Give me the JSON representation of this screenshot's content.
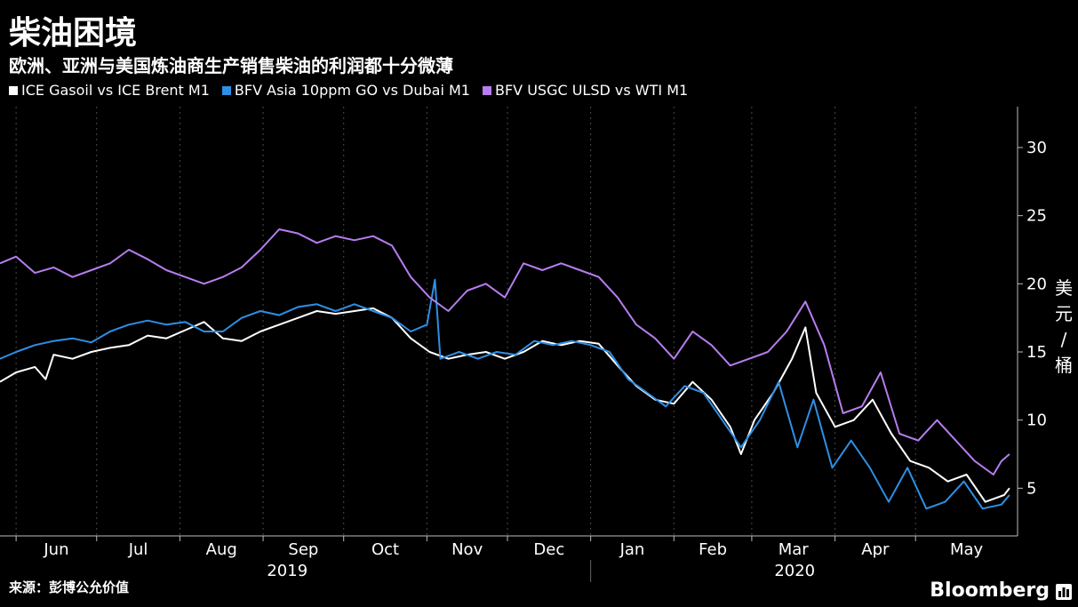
{
  "title": "柴油困境",
  "subtitle": "欧洲、亚洲与美国炼油商生产销售柴油的利润都十分微薄",
  "source": "来源：彭博公允价值",
  "brand": "Bloomberg",
  "unit_chars": [
    "美",
    "元",
    "/",
    "桶"
  ],
  "chart_data": {
    "type": "line",
    "title": "柴油困境",
    "subtitle": "欧洲、亚洲与美国炼油商生产销售柴油的利润都十分微薄",
    "ylabel": "美元/桶",
    "ylim": [
      1.5,
      33
    ],
    "yticks": [
      5,
      10,
      15,
      20,
      25,
      30
    ],
    "xlim": [
      "2019-05-26",
      "2020-06-08"
    ],
    "month_ticks": [
      {
        "label": "Jun",
        "date": "2019-06-01"
      },
      {
        "label": "Jul",
        "date": "2019-07-01"
      },
      {
        "label": "Aug",
        "date": "2019-08-01"
      },
      {
        "label": "Sep",
        "date": "2019-09-01"
      },
      {
        "label": "Oct",
        "date": "2019-10-01"
      },
      {
        "label": "Nov",
        "date": "2019-11-01"
      },
      {
        "label": "Dec",
        "date": "2019-12-01"
      },
      {
        "label": "Jan",
        "date": "2020-01-01"
      },
      {
        "label": "Feb",
        "date": "2020-02-01"
      },
      {
        "label": "Mar",
        "date": "2020-03-01"
      },
      {
        "label": "Apr",
        "date": "2020-04-01"
      },
      {
        "label": "May",
        "date": "2020-05-01"
      }
    ],
    "year_labels": [
      {
        "label": "2019",
        "date": "2019-09-10"
      },
      {
        "label": "2020",
        "date": "2020-03-17"
      }
    ],
    "year_divider": "2020-01-01",
    "axis_position": "right",
    "grid": "vertical dashed",
    "legend_position": "top-left",
    "series": [
      {
        "name": "ICE Gasoil vs ICE Brent M1",
        "color": "#ffffff",
        "points": [
          [
            "2019-05-26",
            12.8
          ],
          [
            "2019-06-01",
            13.5
          ],
          [
            "2019-06-08",
            13.9
          ],
          [
            "2019-06-12",
            13.0
          ],
          [
            "2019-06-15",
            14.8
          ],
          [
            "2019-06-22",
            14.5
          ],
          [
            "2019-06-29",
            15.0
          ],
          [
            "2019-07-06",
            15.3
          ],
          [
            "2019-07-13",
            15.5
          ],
          [
            "2019-07-20",
            16.2
          ],
          [
            "2019-07-27",
            16.0
          ],
          [
            "2019-08-03",
            16.6
          ],
          [
            "2019-08-10",
            17.2
          ],
          [
            "2019-08-17",
            16.0
          ],
          [
            "2019-08-24",
            15.8
          ],
          [
            "2019-08-31",
            16.5
          ],
          [
            "2019-09-07",
            17.0
          ],
          [
            "2019-09-14",
            17.5
          ],
          [
            "2019-09-21",
            18.0
          ],
          [
            "2019-09-28",
            17.8
          ],
          [
            "2019-10-05",
            18.0
          ],
          [
            "2019-10-12",
            18.2
          ],
          [
            "2019-10-19",
            17.5
          ],
          [
            "2019-10-26",
            16.0
          ],
          [
            "2019-11-02",
            15.0
          ],
          [
            "2019-11-09",
            14.5
          ],
          [
            "2019-11-16",
            14.8
          ],
          [
            "2019-11-23",
            15.0
          ],
          [
            "2019-11-30",
            14.5
          ],
          [
            "2019-12-07",
            15.0
          ],
          [
            "2019-12-14",
            15.8
          ],
          [
            "2019-12-21",
            15.5
          ],
          [
            "2019-12-28",
            15.8
          ],
          [
            "2020-01-04",
            15.6
          ],
          [
            "2020-01-11",
            14.0
          ],
          [
            "2020-01-18",
            12.5
          ],
          [
            "2020-01-25",
            11.5
          ],
          [
            "2020-02-01",
            11.2
          ],
          [
            "2020-02-08",
            12.8
          ],
          [
            "2020-02-15",
            11.5
          ],
          [
            "2020-02-22",
            9.5
          ],
          [
            "2020-02-26",
            7.5
          ],
          [
            "2020-03-02",
            10.0
          ],
          [
            "2020-03-09",
            12.0
          ],
          [
            "2020-03-16",
            14.5
          ],
          [
            "2020-03-21",
            16.8
          ],
          [
            "2020-03-25",
            12.0
          ],
          [
            "2020-04-01",
            9.5
          ],
          [
            "2020-04-08",
            10.0
          ],
          [
            "2020-04-15",
            11.5
          ],
          [
            "2020-04-22",
            9.0
          ],
          [
            "2020-04-29",
            7.0
          ],
          [
            "2020-05-06",
            6.5
          ],
          [
            "2020-05-13",
            5.5
          ],
          [
            "2020-05-20",
            6.0
          ],
          [
            "2020-05-27",
            4.0
          ],
          [
            "2020-06-03",
            4.5
          ],
          [
            "2020-06-05",
            5.0
          ]
        ]
      },
      {
        "name": "BFV Asia 10ppm GO vs Dubai M1",
        "color": "#2e8fe6",
        "points": [
          [
            "2019-05-26",
            14.5
          ],
          [
            "2019-06-01",
            15.0
          ],
          [
            "2019-06-08",
            15.5
          ],
          [
            "2019-06-15",
            15.8
          ],
          [
            "2019-06-22",
            16.0
          ],
          [
            "2019-06-29",
            15.7
          ],
          [
            "2019-07-06",
            16.5
          ],
          [
            "2019-07-13",
            17.0
          ],
          [
            "2019-07-20",
            17.3
          ],
          [
            "2019-07-27",
            17.0
          ],
          [
            "2019-08-03",
            17.2
          ],
          [
            "2019-08-10",
            16.5
          ],
          [
            "2019-08-17",
            16.5
          ],
          [
            "2019-08-24",
            17.5
          ],
          [
            "2019-08-31",
            18.0
          ],
          [
            "2019-09-07",
            17.7
          ],
          [
            "2019-09-14",
            18.3
          ],
          [
            "2019-09-21",
            18.5
          ],
          [
            "2019-09-28",
            18.0
          ],
          [
            "2019-10-05",
            18.5
          ],
          [
            "2019-10-12",
            18.0
          ],
          [
            "2019-10-19",
            17.5
          ],
          [
            "2019-10-26",
            16.5
          ],
          [
            "2019-11-01",
            17.0
          ],
          [
            "2019-11-04",
            20.3
          ],
          [
            "2019-11-06",
            14.5
          ],
          [
            "2019-11-13",
            15.0
          ],
          [
            "2019-11-20",
            14.5
          ],
          [
            "2019-11-27",
            15.0
          ],
          [
            "2019-12-04",
            14.8
          ],
          [
            "2019-12-11",
            15.8
          ],
          [
            "2019-12-18",
            15.5
          ],
          [
            "2019-12-25",
            15.8
          ],
          [
            "2020-01-01",
            15.5
          ],
          [
            "2020-01-08",
            15.0
          ],
          [
            "2020-01-15",
            13.0
          ],
          [
            "2020-01-22",
            12.0
          ],
          [
            "2020-01-29",
            11.0
          ],
          [
            "2020-02-05",
            12.5
          ],
          [
            "2020-02-12",
            12.0
          ],
          [
            "2020-02-19",
            10.0
          ],
          [
            "2020-02-26",
            8.0
          ],
          [
            "2020-03-04",
            10.0
          ],
          [
            "2020-03-11",
            12.8
          ],
          [
            "2020-03-18",
            8.0
          ],
          [
            "2020-03-24",
            11.5
          ],
          [
            "2020-03-31",
            6.5
          ],
          [
            "2020-04-07",
            8.5
          ],
          [
            "2020-04-14",
            6.5
          ],
          [
            "2020-04-21",
            4.0
          ],
          [
            "2020-04-28",
            6.5
          ],
          [
            "2020-05-05",
            3.5
          ],
          [
            "2020-05-12",
            4.0
          ],
          [
            "2020-05-19",
            5.5
          ],
          [
            "2020-05-26",
            3.5
          ],
          [
            "2020-06-02",
            3.8
          ],
          [
            "2020-06-05",
            4.5
          ]
        ]
      },
      {
        "name": "BFV USGC ULSD vs WTI M1",
        "color": "#b77df0",
        "points": [
          [
            "2019-05-26",
            21.5
          ],
          [
            "2019-06-01",
            22.0
          ],
          [
            "2019-06-08",
            20.8
          ],
          [
            "2019-06-15",
            21.2
          ],
          [
            "2019-06-22",
            20.5
          ],
          [
            "2019-06-29",
            21.0
          ],
          [
            "2019-07-06",
            21.5
          ],
          [
            "2019-07-13",
            22.5
          ],
          [
            "2019-07-20",
            21.8
          ],
          [
            "2019-07-27",
            21.0
          ],
          [
            "2019-08-03",
            20.5
          ],
          [
            "2019-08-10",
            20.0
          ],
          [
            "2019-08-17",
            20.5
          ],
          [
            "2019-08-24",
            21.2
          ],
          [
            "2019-08-31",
            22.5
          ],
          [
            "2019-09-07",
            24.0
          ],
          [
            "2019-09-14",
            23.7
          ],
          [
            "2019-09-21",
            23.0
          ],
          [
            "2019-09-28",
            23.5
          ],
          [
            "2019-10-05",
            23.2
          ],
          [
            "2019-10-12",
            23.5
          ],
          [
            "2019-10-19",
            22.8
          ],
          [
            "2019-10-26",
            20.5
          ],
          [
            "2019-11-02",
            19.0
          ],
          [
            "2019-11-09",
            18.0
          ],
          [
            "2019-11-16",
            19.5
          ],
          [
            "2019-11-23",
            20.0
          ],
          [
            "2019-11-30",
            19.0
          ],
          [
            "2019-12-07",
            21.5
          ],
          [
            "2019-12-14",
            21.0
          ],
          [
            "2019-12-21",
            21.5
          ],
          [
            "2019-12-28",
            21.0
          ],
          [
            "2020-01-04",
            20.5
          ],
          [
            "2020-01-11",
            19.0
          ],
          [
            "2020-01-18",
            17.0
          ],
          [
            "2020-01-25",
            16.0
          ],
          [
            "2020-02-01",
            14.5
          ],
          [
            "2020-02-08",
            16.5
          ],
          [
            "2020-02-15",
            15.5
          ],
          [
            "2020-02-22",
            14.0
          ],
          [
            "2020-02-29",
            14.5
          ],
          [
            "2020-03-07",
            15.0
          ],
          [
            "2020-03-14",
            16.5
          ],
          [
            "2020-03-21",
            18.7
          ],
          [
            "2020-03-28",
            15.5
          ],
          [
            "2020-04-04",
            10.5
          ],
          [
            "2020-04-11",
            11.0
          ],
          [
            "2020-04-18",
            13.5
          ],
          [
            "2020-04-25",
            9.0
          ],
          [
            "2020-05-02",
            8.5
          ],
          [
            "2020-05-09",
            10.0
          ],
          [
            "2020-05-16",
            8.5
          ],
          [
            "2020-05-23",
            7.0
          ],
          [
            "2020-05-30",
            6.0
          ],
          [
            "2020-06-02",
            7.0
          ],
          [
            "2020-06-05",
            7.5
          ]
        ]
      }
    ]
  }
}
